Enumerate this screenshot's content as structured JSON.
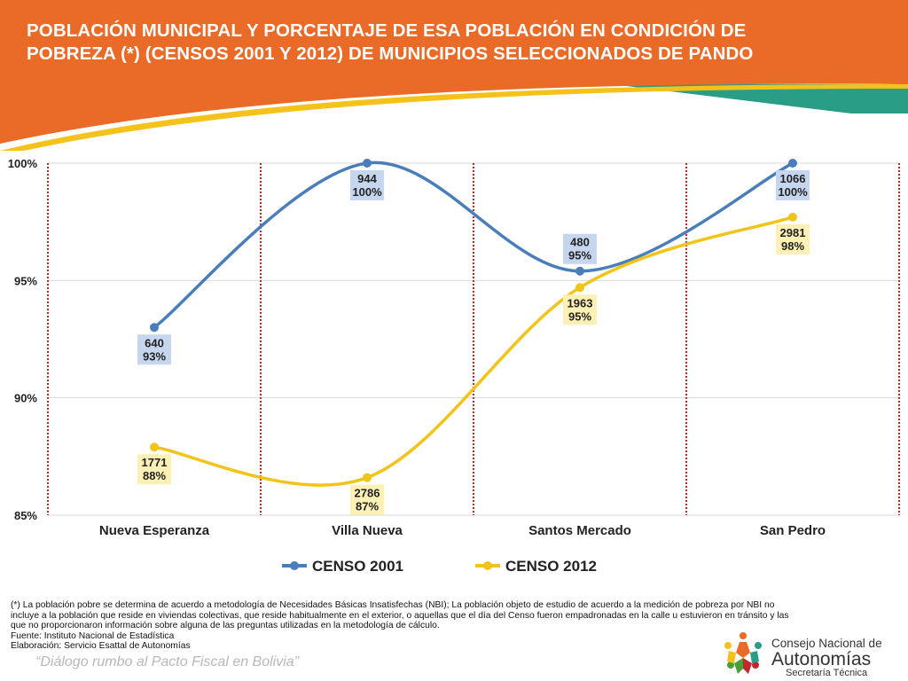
{
  "title_lines": [
    "POBLACIÓN MUNICIPAL Y PORCENTAJE DE ESA POBLACIÓN EN CONDICIÓN DE",
    "POBREZA (*) (CENSOS 2001 Y 2012) DE MUNICIPIOS SELECCIONADOS DE PANDO"
  ],
  "colors": {
    "header_orange": "#ea6a28",
    "header_yellow": "#f5c21b",
    "header_teal": "#2a9d86",
    "series_2001": "#4a7ebb",
    "series_2012": "#f2c318",
    "label_2001_bg": "#c5d6ee",
    "label_2012_bg": "#fdf0b5",
    "divider": "#c0282e"
  },
  "chart_data": {
    "type": "line",
    "categories": [
      "Nueva Esperanza",
      "Villa Nueva",
      "Santos Mercado",
      "San Pedro"
    ],
    "ylim": [
      85,
      100
    ],
    "y_ticks": [
      85,
      90,
      95,
      100
    ],
    "y_tick_labels": [
      "85%",
      "90%",
      "95%",
      "100%"
    ],
    "grid": true,
    "legend_position": "bottom",
    "series": [
      {
        "name": "CENSO 2001",
        "values": [
          93.0,
          100.0,
          95.4,
          100.0
        ],
        "population": [
          "640",
          "944",
          "480",
          "1066"
        ],
        "percent_labels": [
          "93%",
          "100%",
          "95%",
          "100%"
        ]
      },
      {
        "name": "CENSO 2012",
        "values": [
          87.9,
          86.6,
          94.7,
          97.7
        ],
        "population": [
          "1771",
          "2786",
          "1963",
          "2981"
        ],
        "percent_labels": [
          "88%",
          "87%",
          "95%",
          "98%"
        ]
      }
    ]
  },
  "footnote": {
    "lines": [
      "(*) La población pobre se determina de acuerdo a metodología de Necesidades Básicas Insatisfechas (NBI); La población objeto de estudio de acuerdo a la medición de pobreza por NBI no",
      "incluye a la población que reside en viviendas colectivas, que reside habitualmente en el exterior, o aquellas que el día del Censo fueron empadronadas en la calle u estuvieron en tránsito y las",
      "que no proporcionaron información sobre alguna de las preguntas utilizadas en la metodología de cálculo.",
      "Fuente: Instituto Nacional de Estadística",
      "Elaboración: Servicio Esattal de Autonomías"
    ]
  },
  "slogan": "“Diálogo rumbo al Pacto Fiscal en Bolivia”",
  "logo": {
    "line1": "Consejo Nacional de",
    "line2": "Autonomías",
    "line3": "Secretaría Técnica"
  }
}
